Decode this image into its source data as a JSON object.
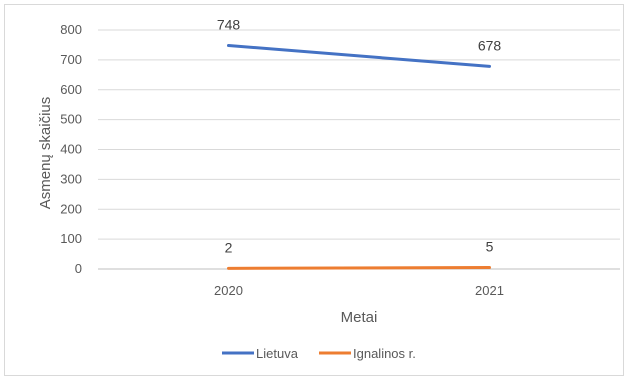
{
  "chart_data": {
    "type": "line",
    "title": "",
    "xlabel": "Metai",
    "ylabel": "Asmenų skaičius",
    "categories": [
      "2020",
      "2021"
    ],
    "ylim": [
      0,
      800
    ],
    "yticks": [
      0,
      100,
      200,
      300,
      400,
      500,
      600,
      700,
      800
    ],
    "grid": "horizontal",
    "legend": "bottom",
    "series": [
      {
        "name": "Lietuva",
        "values": [
          748,
          678
        ],
        "labels": [
          "748",
          "678"
        ],
        "color": "#4472c4"
      },
      {
        "name": "Ignalinos r.",
        "values": [
          2,
          5
        ],
        "labels": [
          "2",
          "5"
        ],
        "color": "#ed7d31"
      }
    ]
  }
}
